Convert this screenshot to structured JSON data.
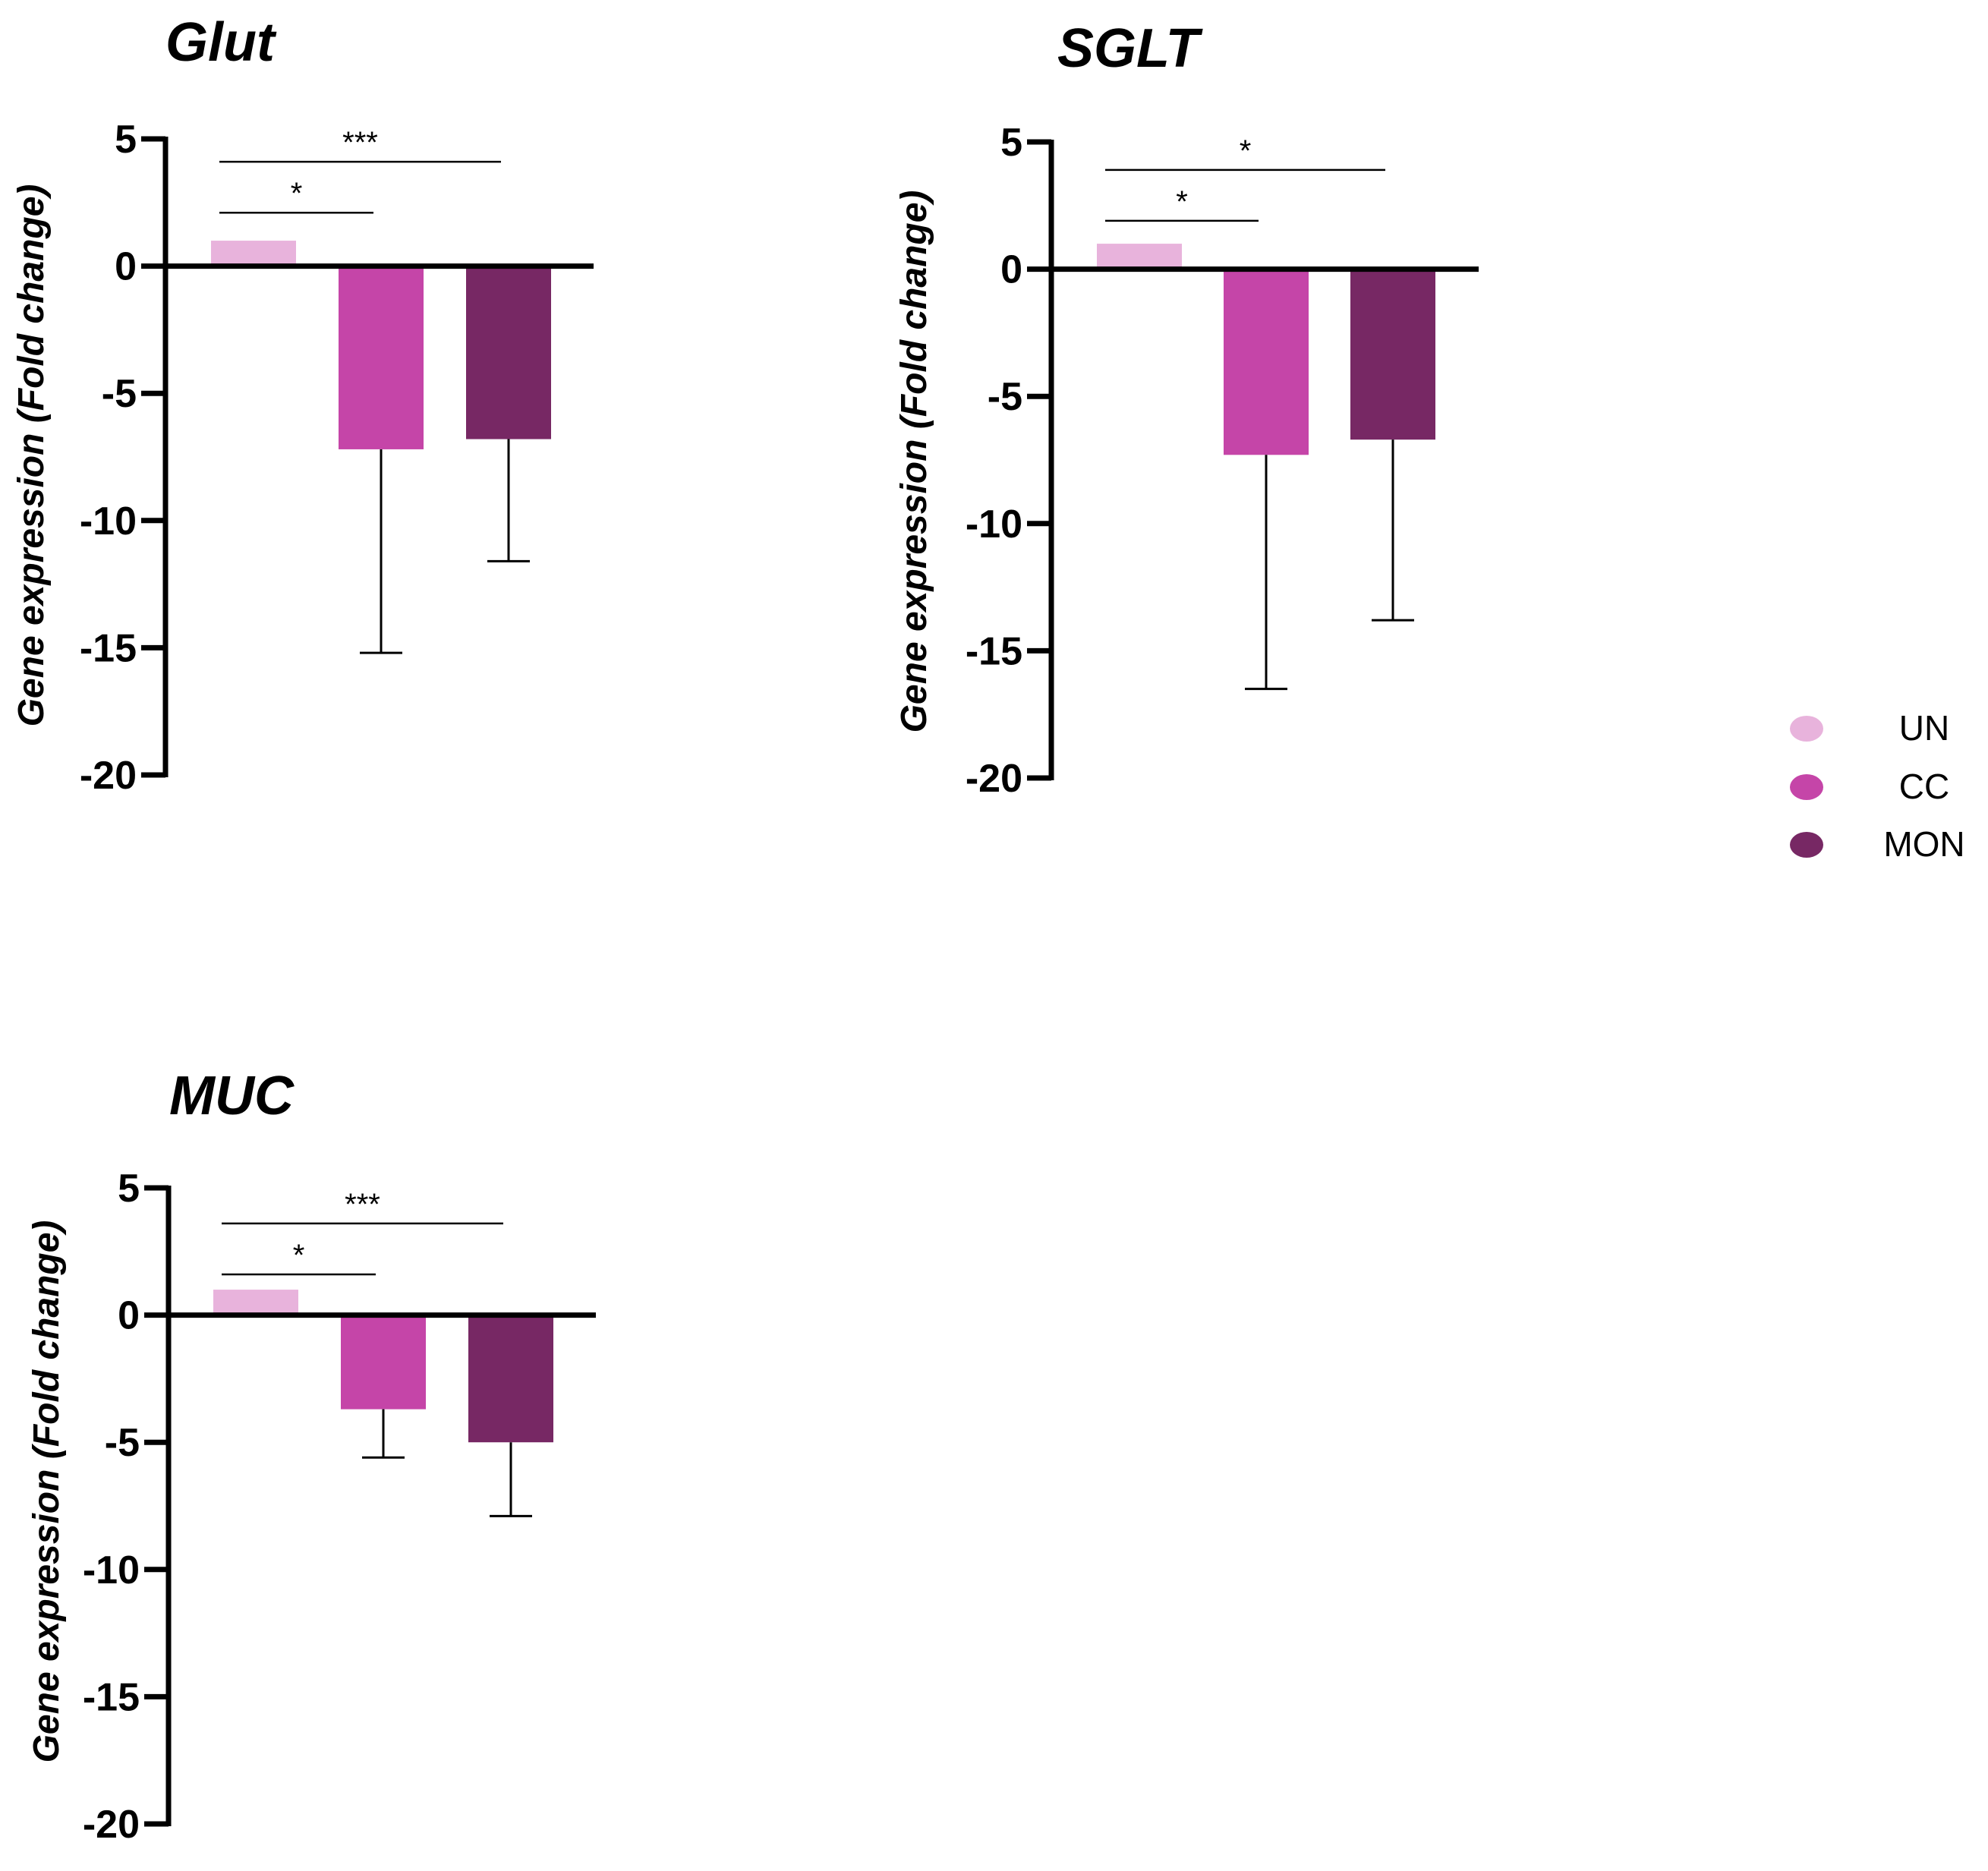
{
  "chart_data": [
    {
      "type": "bar",
      "title": "Glut",
      "ylabel": "Gene expression (Fold change)",
      "xlabel": "",
      "categories": [
        "UN",
        "CC",
        "MON"
      ],
      "values": [
        1,
        -7.2,
        -6.8
      ],
      "error_bars": [
        0,
        8.0,
        4.8
      ],
      "ylim": [
        -20,
        5
      ],
      "yticks": [
        "5",
        "0",
        "-5",
        "-10",
        "-15",
        "-20"
      ],
      "significance": [
        {
          "from": "UN",
          "to": "CC",
          "label": "*",
          "y": 2.1
        },
        {
          "from": "UN",
          "to": "MON",
          "label": "***",
          "y": 4.1
        }
      ]
    },
    {
      "type": "bar",
      "title": "SGLT",
      "ylabel": "Gene expression (Fold change)",
      "xlabel": "",
      "categories": [
        "UN",
        "CC",
        "MON"
      ],
      "values": [
        1,
        -7.3,
        -6.7
      ],
      "error_bars": [
        0,
        9.2,
        7.1
      ],
      "ylim": [
        -20,
        5
      ],
      "yticks": [
        "5",
        "0",
        "-5",
        "-10",
        "-15",
        "-20"
      ],
      "significance": [
        {
          "from": "UN",
          "to": "CC",
          "label": "*",
          "y": 1.9
        },
        {
          "from": "UN",
          "to": "MON",
          "label": "*",
          "y": 3.9
        }
      ]
    },
    {
      "type": "bar",
      "title": "MUC",
      "ylabel": "Gene expression (Fold change)",
      "xlabel": "",
      "categories": [
        "UN",
        "CC",
        "MON"
      ],
      "values": [
        1,
        -3.7,
        -5.0
      ],
      "error_bars": [
        0,
        1.9,
        2.9
      ],
      "ylim": [
        -20,
        5
      ],
      "yticks": [
        "5",
        "0",
        "-5",
        "-10",
        "-15",
        "-20"
      ],
      "significance": [
        {
          "from": "UN",
          "to": "CC",
          "label": "*",
          "y": 1.6
        },
        {
          "from": "UN",
          "to": "MON",
          "label": "***",
          "y": 3.6
        }
      ]
    }
  ],
  "legend": {
    "position": "right",
    "items": [
      {
        "label": "UN",
        "color": "#e8b3dc"
      },
      {
        "label": "CC",
        "color": "#c545a8"
      },
      {
        "label": "MON",
        "color": "#772864"
      }
    ]
  },
  "colors": {
    "UN": "#e8b3dc",
    "CC": "#c545a8",
    "MON": "#772864",
    "axis": "#000000"
  }
}
